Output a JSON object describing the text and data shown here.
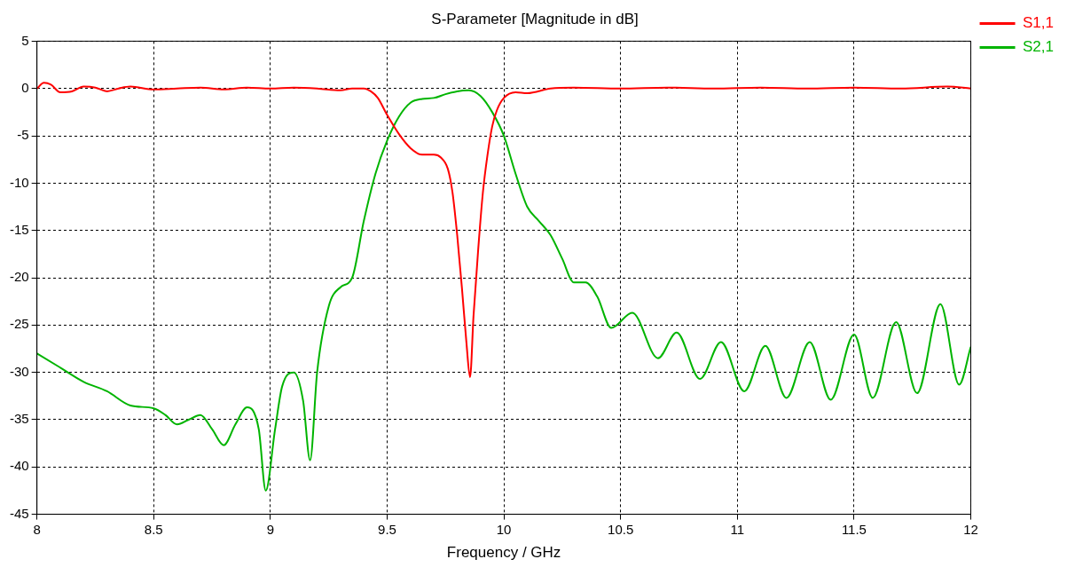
{
  "chart_data": {
    "type": "line",
    "title": "S-Parameter [Magnitude in dB]",
    "xlabel": "Frequency / GHz",
    "xlim": [
      8,
      12
    ],
    "xticks": [
      8,
      8.5,
      9,
      9.5,
      10,
      10.5,
      11,
      11.5,
      12
    ],
    "ylim": [
      -45,
      5
    ],
    "yticks": [
      5,
      0,
      -5,
      -10,
      -15,
      -20,
      -25,
      -30,
      -35,
      -40,
      -45
    ],
    "grid": true,
    "legend": "top right",
    "marker": "none",
    "line_style": "solid",
    "series": [
      {
        "name": "S1,1",
        "color": "#ff0000",
        "x": [
          8,
          8.03,
          8.06,
          8.1,
          8.15,
          8.2,
          8.25,
          8.3,
          8.35,
          8.4,
          8.5,
          8.6,
          8.7,
          8.8,
          8.9,
          9.0,
          9.1,
          9.2,
          9.3,
          9.35,
          9.4,
          9.43,
          9.46,
          9.5,
          9.55,
          9.6,
          9.65,
          9.7,
          9.73,
          9.76,
          9.78,
          9.8,
          9.82,
          9.84,
          9.855,
          9.87,
          9.89,
          9.91,
          9.93,
          9.95,
          9.97,
          10.0,
          10.05,
          10.1,
          10.2,
          10.3,
          10.5,
          10.7,
          10.9,
          11.1,
          11.3,
          11.5,
          11.7,
          11.9,
          12
        ],
        "values": [
          0,
          0.6,
          0.4,
          -0.4,
          -0.3,
          0.2,
          0.1,
          -0.3,
          0,
          0.2,
          -0.1,
          0,
          0.1,
          -0.1,
          0.1,
          0,
          0.1,
          0,
          -0.2,
          0,
          0,
          -0.3,
          -1,
          -2.8,
          -4.8,
          -6.3,
          -7,
          -7,
          -7.3,
          -8.5,
          -11,
          -15.5,
          -21,
          -27,
          -30.5,
          -24,
          -17,
          -11,
          -7,
          -4,
          -2.3,
          -1,
          -0.4,
          -0.5,
          0,
          0.1,
          0,
          0.1,
          0,
          0.1,
          0,
          0.1,
          0,
          0.2,
          0
        ]
      },
      {
        "name": "S2,1",
        "color": "#00b400",
        "x": [
          8,
          8.1,
          8.2,
          8.3,
          8.4,
          8.5,
          8.55,
          8.6,
          8.65,
          8.7,
          8.75,
          8.8,
          8.85,
          8.9,
          8.95,
          8.98,
          9.02,
          9.05,
          9.1,
          9.14,
          9.17,
          9.2,
          9.25,
          9.3,
          9.35,
          9.4,
          9.45,
          9.5,
          9.55,
          9.6,
          9.65,
          9.7,
          9.75,
          9.8,
          9.85,
          9.9,
          9.95,
          10.0,
          10.05,
          10.1,
          10.15,
          10.2,
          10.25,
          10.3,
          10.35,
          10.4,
          10.46,
          10.55,
          10.66,
          10.74,
          10.84,
          10.93,
          11.03,
          11.12,
          11.21,
          11.31,
          11.4,
          11.5,
          11.58,
          11.68,
          11.77,
          11.87,
          11.95,
          12
        ],
        "values": [
          -28,
          -29.5,
          -31,
          -32,
          -33.5,
          -33.8,
          -34.5,
          -35.5,
          -35,
          -34.5,
          -36,
          -37.7,
          -35.5,
          -33.7,
          -36,
          -42.5,
          -36,
          -31.5,
          -30,
          -33,
          -39.3,
          -30,
          -23,
          -21,
          -20,
          -14,
          -9,
          -5.5,
          -3,
          -1.5,
          -1.1,
          -1,
          -0.6,
          -0.3,
          -0.2,
          -0.8,
          -2.5,
          -5,
          -9,
          -12.5,
          -14,
          -15.5,
          -18,
          -20.5,
          -20.5,
          -22,
          -25.3,
          -23.7,
          -28.5,
          -25.8,
          -30.7,
          -26.8,
          -32,
          -27.2,
          -32.7,
          -26.8,
          -32.9,
          -26,
          -32.7,
          -24.7,
          -32.2,
          -22.8,
          -31.3,
          -27.3
        ]
      }
    ]
  }
}
